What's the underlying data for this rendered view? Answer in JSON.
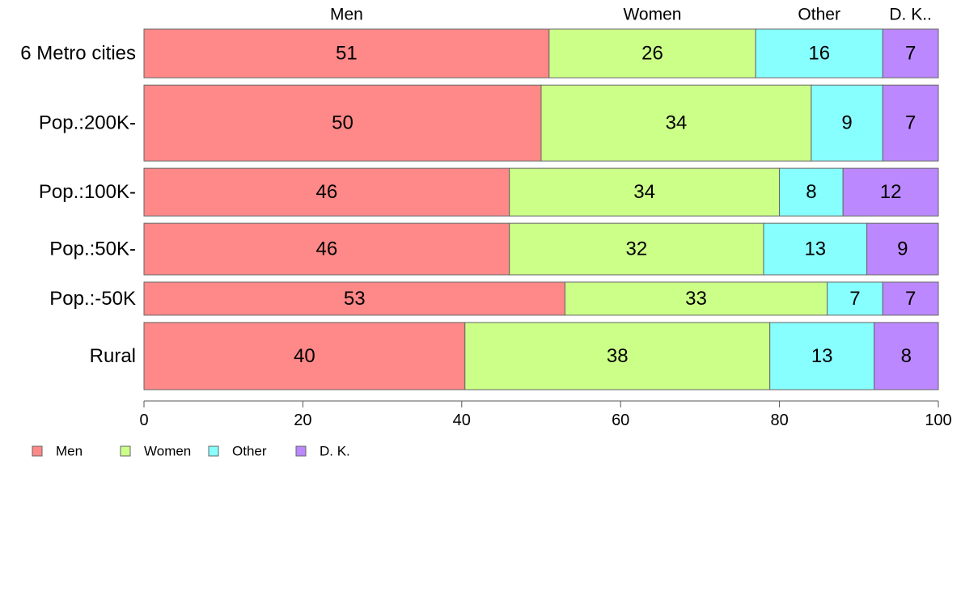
{
  "chart_data": {
    "type": "bar",
    "orientation": "horizontal",
    "stacked": true,
    "categories": [
      "6 Metro cities",
      "Pop.:200K-",
      "Pop.:100K-",
      "Pop.:50K-",
      "Pop.:-50K",
      "Rural"
    ],
    "category_weights": [
      1.0,
      1.56,
      0.98,
      1.06,
      0.68,
      1.38
    ],
    "series": [
      {
        "name": "Men",
        "color": "#ff8888",
        "values": [
          51,
          50,
          46,
          46,
          53,
          40
        ]
      },
      {
        "name": "Women",
        "color": "#ccff88",
        "values": [
          26,
          34,
          34,
          32,
          33,
          38
        ]
      },
      {
        "name": "Other",
        "color": "#88ffff",
        "values": [
          16,
          9,
          8,
          13,
          7,
          13
        ]
      },
      {
        "name": "D. K.",
        "color": "#bb88ff",
        "values": [
          7,
          7,
          12,
          9,
          7,
          8
        ]
      }
    ],
    "top_labels": [
      "Men",
      "Women",
      "Other",
      "D. K.."
    ],
    "xlim": [
      0,
      100
    ],
    "xticks": [
      "0",
      "20",
      "40",
      "60",
      "80",
      "100"
    ],
    "legend": {
      "position": "bottom-left",
      "labels": [
        "Men",
        "Women",
        "Other",
        "D. K."
      ]
    },
    "grid": false
  }
}
